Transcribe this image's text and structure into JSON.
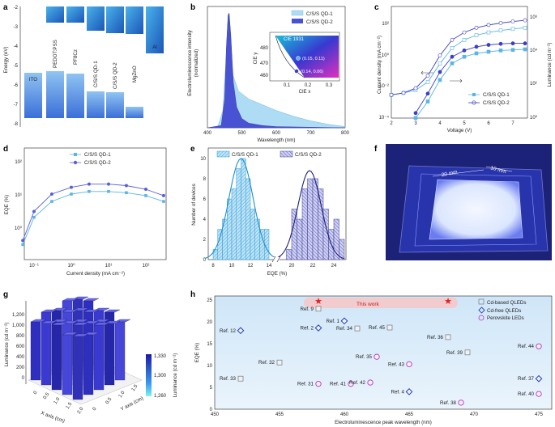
{
  "panels": {
    "a": "a",
    "b": "b",
    "c": "c",
    "d": "d",
    "e": "e",
    "f": "f",
    "g": "g",
    "h": "h"
  },
  "panel_a": {
    "ylabel": "Energy (eV)",
    "yticks": [
      "-2",
      "-3",
      "-4",
      "-5",
      "-6",
      "-7",
      "-8"
    ],
    "layers": [
      "ITO",
      "PEDOT:PSS",
      "PF8Cz",
      "C/S/S QD-1",
      "C/S/S QD-2",
      "MgZnO",
      "Al"
    ],
    "chart_data": {
      "type": "bar",
      "title": "",
      "ylabel": "Energy (eV)",
      "ylim": [
        -8,
        -1.8
      ],
      "categories": [
        "ITO",
        "PEDOT:PSS",
        "PF8Cz",
        "C/S/S QD-1",
        "C/S/S QD-2",
        "MgZnO",
        "Al"
      ],
      "lumo": [
        null,
        -2.2,
        -2.2,
        -3.5,
        -3.6,
        -3.4,
        -4.2
      ],
      "homo": [
        -4.7,
        -5.2,
        -5.4,
        -6.3,
        -6.3,
        -7.1,
        null
      ]
    }
  },
  "panel_b": {
    "ylabel_line1": "Electroluminescence intensity",
    "ylabel_line2": "(normalized)",
    "xlabel": "Wavelength (nm)",
    "xticks": [
      "400",
      "500",
      "600",
      "700",
      "800"
    ],
    "legend": [
      "C/S/S QD-1",
      "C/S/S QD-2"
    ],
    "inset": {
      "title": "CIE 1931",
      "ylabel": "CIE y",
      "xlabel": "CIE x",
      "yticks": [
        "480",
        "470",
        "460"
      ],
      "xticks": [
        "0.1",
        "0.2",
        "0.3"
      ],
      "point1": "(0.15, 0.11)",
      "point2": "(0.14, 0.06)"
    },
    "chart_data": {
      "type": "area",
      "xlim": [
        400,
        800
      ],
      "series": [
        {
          "name": "C/S/S QD-1",
          "x": [
            400,
            430,
            445,
            455,
            460,
            465,
            475,
            490,
            520,
            560,
            600,
            650,
            700,
            750,
            800
          ],
          "y": [
            0,
            0.01,
            0.15,
            0.65,
            0.85,
            0.72,
            0.45,
            0.32,
            0.25,
            0.2,
            0.15,
            0.1,
            0.06,
            0.03,
            0.01
          ]
        },
        {
          "name": "C/S/S QD-2",
          "x": [
            400,
            440,
            450,
            455,
            460,
            463,
            468,
            475,
            485,
            500,
            520,
            560,
            600,
            800
          ],
          "y": [
            0,
            0.02,
            0.25,
            0.7,
            0.98,
            1,
            0.8,
            0.4,
            0.18,
            0.08,
            0.04,
            0.02,
            0.01,
            0
          ]
        }
      ]
    }
  },
  "panel_c": {
    "ylabel": "Current density (mA cm⁻²)",
    "y2label": "Luminance (cd m⁻²)",
    "xlabel": "Voltage (V)",
    "xticks": [
      "2",
      "3",
      "4",
      "5",
      "6",
      "7"
    ],
    "yticks": [
      "10²",
      "10⁰",
      "10⁻²",
      "10⁻⁴"
    ],
    "y2ticks": [
      "10⁶",
      "10⁴",
      "10²",
      "10⁰"
    ],
    "legend": [
      "C/S/S QD-1",
      "C/S/S QD-2"
    ],
    "chart_data": {
      "type": "line",
      "x": [
        2,
        2.5,
        3,
        3.5,
        4,
        4.5,
        5,
        5.5,
        6,
        6.5,
        7,
        7.5
      ],
      "series": [
        {
          "name": "C/S/S QD-1 J",
          "values": [
            0.003,
            0.004,
            0.006,
            0.02,
            0.3,
            3,
            10,
            20,
            30,
            40,
            50,
            60
          ]
        },
        {
          "name": "C/S/S QD-2 J",
          "values": [
            0.003,
            0.004,
            0.008,
            0.05,
            1,
            10,
            30,
            60,
            90,
            120,
            150,
            180
          ]
        },
        {
          "name": "C/S/S QD-1 L",
          "values": [
            null,
            null,
            1,
            10,
            200,
            2000,
            5000,
            8000,
            10000,
            12000,
            13000,
            14000
          ]
        },
        {
          "name": "C/S/S QD-2 L",
          "values": [
            null,
            null,
            2,
            30,
            600,
            5000,
            12000,
            20000,
            26000,
            30000,
            32000,
            32000
          ]
        }
      ]
    }
  },
  "panel_d": {
    "ylabel": "EQE (%)",
    "xlabel": "Current density (mA cm⁻²)",
    "yticks": [
      "10²",
      "10¹",
      "10⁰"
    ],
    "xticks": [
      "10⁻¹",
      "10⁰",
      "10¹",
      "10²"
    ],
    "legend": [
      "C/S/S QD-1",
      "C/S/S QD-2"
    ],
    "chart_data": {
      "type": "line",
      "x": [
        0.05,
        0.1,
        0.3,
        1,
        3,
        10,
        30,
        100,
        300
      ],
      "series": [
        {
          "name": "C/S/S QD-1",
          "values": [
            0.3,
            2,
            6,
            10,
            12,
            12,
            11,
            9,
            6
          ]
        },
        {
          "name": "C/S/S QD-2",
          "values": [
            0.4,
            3,
            10,
            16,
            20,
            20,
            18,
            14,
            9
          ]
        }
      ]
    }
  },
  "panel_e": {
    "ylabel": "Number of devices",
    "xlabel": "EQE (%)",
    "yticks": [
      "0",
      "2",
      "4",
      "6",
      "8",
      "10"
    ],
    "xticks": [
      "8",
      "10",
      "12",
      "14",
      "20",
      "22",
      "24"
    ],
    "legend": [
      "C/S/S QD-1",
      "C/S/S QD-2"
    ],
    "chart_data": {
      "type": "bar",
      "series": [
        {
          "name": "C/S/S QD-1",
          "bins": [
            8,
            8.5,
            9,
            9.5,
            10,
            10.5,
            11,
            11.5,
            12,
            12.5,
            13,
            13.5
          ],
          "values": [
            1,
            3,
            4,
            6,
            7,
            9,
            10,
            8,
            5,
            4,
            3,
            3
          ]
        },
        {
          "name": "C/S/S QD-2",
          "bins": [
            19.5,
            20,
            20.5,
            21,
            21.5,
            22,
            22.5,
            23,
            23.5,
            24,
            24.5
          ],
          "values": [
            1,
            5,
            4,
            7,
            8,
            8,
            7,
            5,
            3,
            4,
            2
          ]
        }
      ],
      "fit_peaks": [
        11,
        21.7
      ]
    }
  },
  "panel_f": {
    "dim1": "20 mm",
    "dim2": "10 mm"
  },
  "panel_g": {
    "zlabel": "Luminance (cd m⁻²)",
    "zticks": [
      "1,200",
      "1,000",
      "800",
      "600",
      "400",
      "200",
      "0"
    ],
    "xlabel": "X axis (cm)",
    "ylabel": "Y axis (cm)",
    "xticks": [
      "0",
      "0.5",
      "1.0",
      "1.5",
      "2.0"
    ],
    "yticks": [
      "0",
      "0.5",
      "1.0",
      "1.5"
    ],
    "colorbar_title": "Luminance (cd m⁻²)",
    "colorbar_ticks": [
      "1,330",
      "1,300",
      "1,260"
    ]
  },
  "panel_h": {
    "ylabel": "EQE (%)",
    "xlabel": "Electroluminescence peak wavelength (nm)",
    "xticks": [
      "450",
      "455",
      "460",
      "465",
      "470",
      "475"
    ],
    "yticks": [
      "0",
      "5",
      "10",
      "15",
      "20",
      "25"
    ],
    "this_work": "This work",
    "legend": [
      "Cd-based QLEDs",
      "Cd-free QLEDs",
      "Perovskite LEDs"
    ],
    "chart_data": {
      "type": "scatter",
      "xlim": [
        450,
        476
      ],
      "ylim": [
        0,
        26
      ],
      "series": [
        {
          "name": "Cd-based QLEDs",
          "points": [
            {
              "ref": "Ref. 9",
              "x": 458,
              "y": 23
            },
            {
              "ref": "Ref. 34",
              "x": 461,
              "y": 18.5
            },
            {
              "ref": "Ref. 45",
              "x": 463.5,
              "y": 18.7
            },
            {
              "ref": "Ref. 36",
              "x": 468,
              "y": 16.5
            },
            {
              "ref": "Ref. 39",
              "x": 469.5,
              "y": 13
            },
            {
              "ref": "Ref. 32",
              "x": 455,
              "y": 10.7
            },
            {
              "ref": "Ref. 33",
              "x": 452,
              "y": 7
            }
          ]
        },
        {
          "name": "Cd-free QLEDs",
          "points": [
            {
              "ref": "Ref. 12",
              "x": 452,
              "y": 18
            },
            {
              "ref": "Ref. 2",
              "x": 458,
              "y": 18.6
            },
            {
              "ref": "Ref. 1",
              "x": 460,
              "y": 20.2
            },
            {
              "ref": "Ref. 4",
              "x": 465,
              "y": 4
            },
            {
              "ref": "Ref. 37",
              "x": 475,
              "y": 7
            }
          ]
        },
        {
          "name": "Perovskite LEDs",
          "points": [
            {
              "ref": "Ref. 35",
              "x": 462.5,
              "y": 12
            },
            {
              "ref": "Ref. 43",
              "x": 465,
              "y": 10.3
            },
            {
              "ref": "Ref. 31",
              "x": 458,
              "y": 5.8
            },
            {
              "ref": "Ref. 41",
              "x": 460.5,
              "y": 5.8
            },
            {
              "ref": "Ref. 42",
              "x": 462,
              "y": 6.1
            },
            {
              "ref": "Ref. 44",
              "x": 475,
              "y": 14.4
            },
            {
              "ref": "Ref. 40",
              "x": 475,
              "y": 3.5
            },
            {
              "ref": "Ref. 38",
              "x": 469,
              "y": 1.5
            }
          ]
        },
        {
          "name": "This work",
          "points": [
            {
              "x": 458,
              "y": 24.6
            },
            {
              "x": 468,
              "y": 24.6
            }
          ]
        }
      ]
    }
  },
  "colors": {
    "blue1": "#5bb4e6",
    "blue2": "#3a3fc7",
    "grid": "#cccccc",
    "star": "#e02020"
  }
}
